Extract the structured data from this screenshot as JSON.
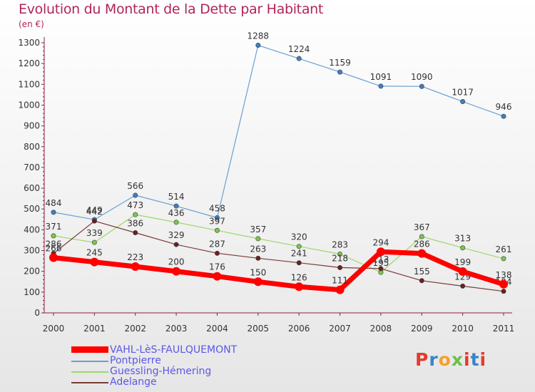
{
  "title": "Evolution du Montant de la Dette par Habitant",
  "subtitle": "(en €)",
  "logo": {
    "letters": [
      "P",
      "r",
      "o",
      "x",
      "i",
      "t",
      "i"
    ],
    "colors": [
      "#e53a2e",
      "#3a83c8",
      "#f3a12b",
      "#6cc04a",
      "#e53a2e",
      "#3a83c8",
      "#e53a2e"
    ]
  },
  "chart_data": {
    "type": "line",
    "x": [
      "2000",
      "2001",
      "2002",
      "2003",
      "2004",
      "2005",
      "2006",
      "2007",
      "2008",
      "2009",
      "2010",
      "2011"
    ],
    "ylim": [
      0,
      1300
    ],
    "yticks": [
      0,
      100,
      200,
      300,
      400,
      500,
      600,
      700,
      800,
      900,
      1000,
      1100,
      1200,
      1300
    ],
    "grid": false,
    "legend_position": "bottom-left",
    "series": [
      {
        "name": "Pontpierre",
        "color": "#6a9fd0",
        "marker": "#3e7fc1",
        "width": 1.2,
        "values": [
          484,
          449,
          566,
          514,
          458,
          1288,
          1224,
          1159,
          1091,
          1090,
          1017,
          946
        ]
      },
      {
        "name": "Guessling-Hémering",
        "color": "#9cd86c",
        "marker": "#78c84a",
        "width": 1.2,
        "values": [
          371,
          339,
          473,
          436,
          397,
          357,
          320,
          283,
          195,
          367,
          313,
          261
        ]
      },
      {
        "name": "Adelange",
        "color": "#7a3a3a",
        "marker": "#6a1f1f",
        "width": 1.2,
        "values": [
          286,
          442,
          386,
          329,
          287,
          263,
          241,
          218,
          213,
          155,
          129,
          104
        ]
      },
      {
        "name": "VAHL-LèS-FAULQUEMONT",
        "color": "#ff0000",
        "marker": "#ff0000",
        "width": 7,
        "values": [
          266,
          245,
          223,
          200,
          176,
          150,
          126,
          111,
          294,
          286,
          199,
          138
        ]
      }
    ]
  }
}
